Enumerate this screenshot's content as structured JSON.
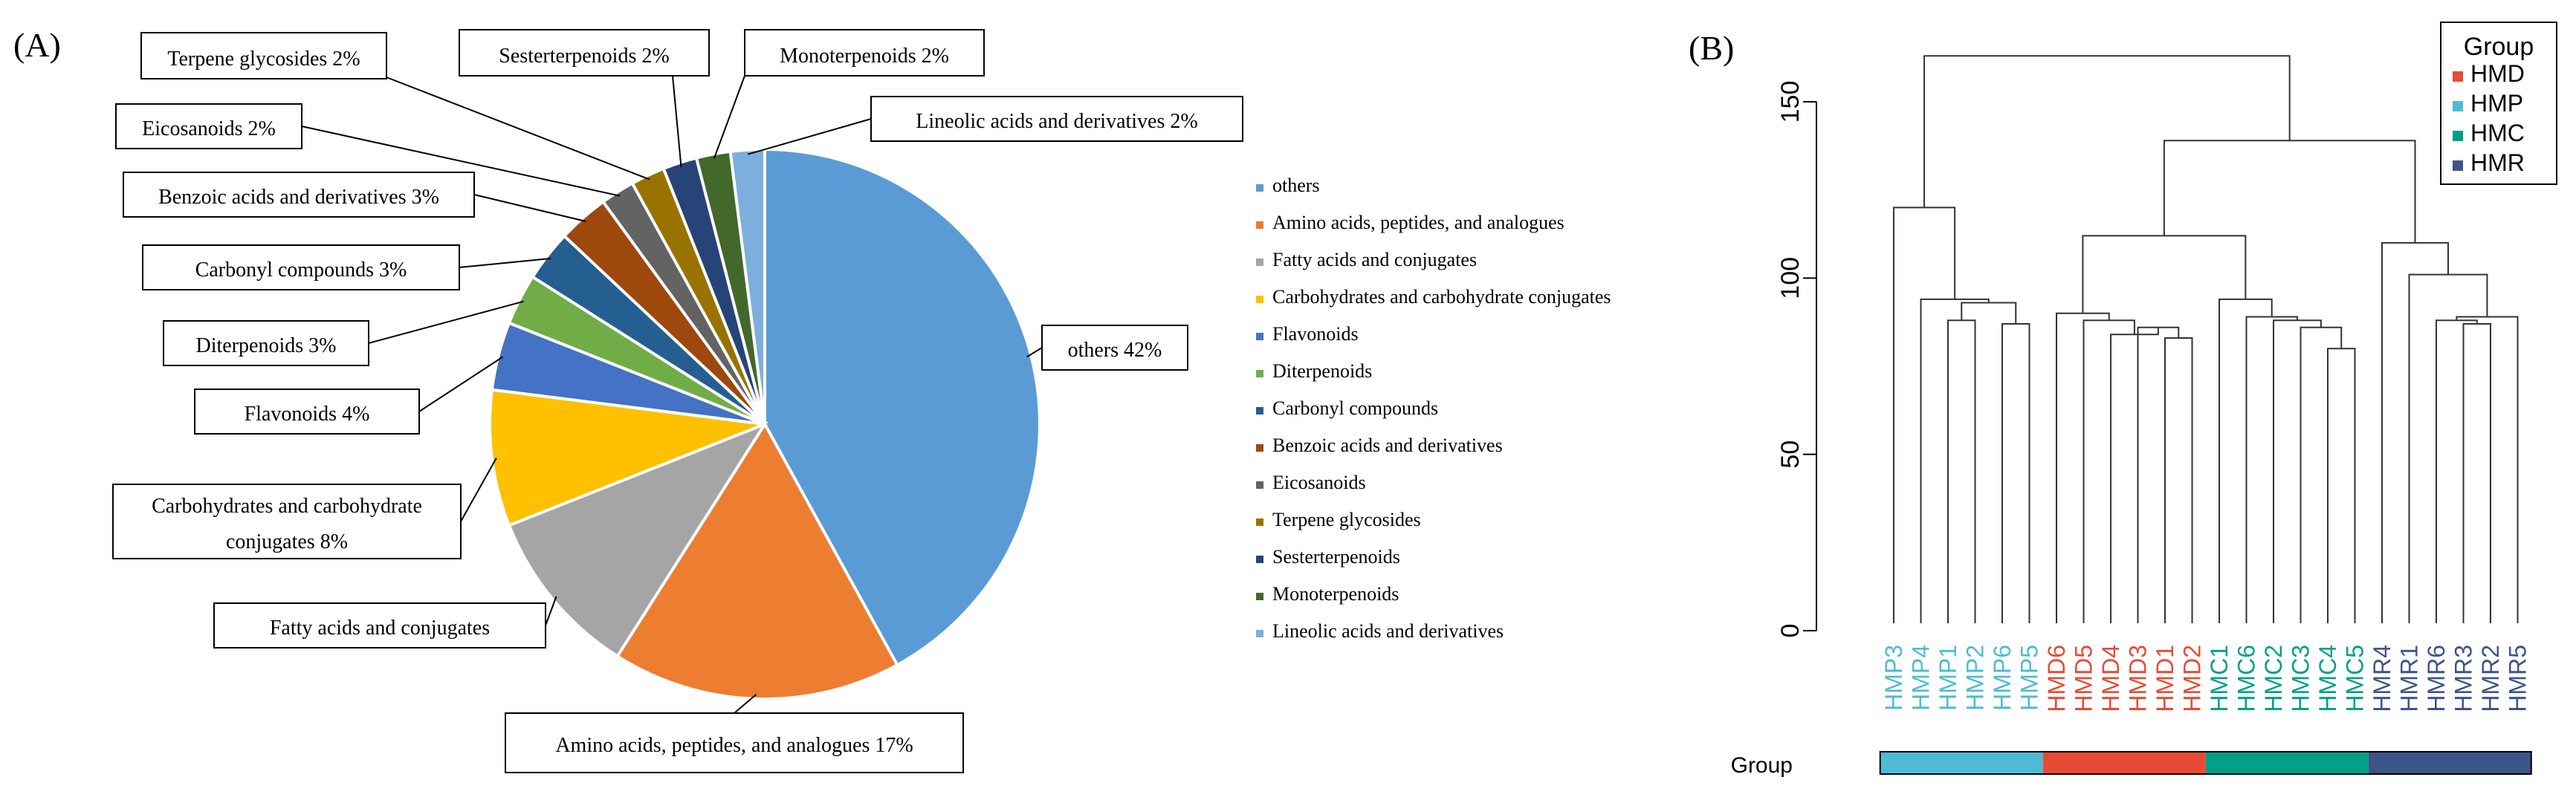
{
  "panel_labels": {
    "a": "(A)",
    "b": "(B)"
  },
  "chart_data": [
    {
      "type": "pie",
      "categories": [
        "others",
        "Amino acids, peptides, and analogues",
        "Fatty acids and conjugates",
        "Carbohydrates and carbohydrate conjugates",
        "Flavonoids",
        "Diterpenoids",
        "Carbonyl compounds",
        "Benzoic acids and derivatives",
        "Eicosanoids",
        "Terpene glycosides",
        "Sesterterpenoids",
        "Monoterpenoids",
        "Lineolic acids and derivatives"
      ],
      "values": [
        42,
        17,
        10,
        8,
        4,
        3,
        3,
        3,
        2,
        2,
        2,
        2,
        2
      ],
      "colors": [
        "#5B9BD5",
        "#ED7D31",
        "#A5A5A5",
        "#FFC000",
        "#4472C4",
        "#70AD47",
        "#255E91",
        "#9E480E",
        "#636363",
        "#997300",
        "#264478",
        "#43682B",
        "#7CAFDD"
      ],
      "data_labels": [
        "others 42%",
        "Amino acids, peptides, and analogues 17%",
        "Fatty acids and conjugates",
        "Carbohydrates and carbohydrate conjugates 8%",
        "Flavonoids 4%",
        "Diterpenoids 3%",
        "Carbonyl compounds 3%",
        "Benzoic acids and derivatives 3%",
        "Eicosanoids 2%",
        "Terpene glycosides 2%",
        "Sesterterpenoids 2%",
        "Monoterpenoids 2%",
        "Lineolic acids and derivatives 2%"
      ],
      "legend": "right"
    },
    {
      "type": "dendrogram",
      "leaves": [
        "HMP3",
        "HMP4",
        "HMP1",
        "HMP2",
        "HMP6",
        "HMP5",
        "HMD6",
        "HMD5",
        "HMD4",
        "HMD3",
        "HMD1",
        "HMD2",
        "HMC1",
        "HMC6",
        "HMC2",
        "HMC3",
        "HMC4",
        "HMC5",
        "HMR4",
        "HMR1",
        "HMR6",
        "HMR3",
        "HMR2",
        "HMR5"
      ],
      "leaf_groups": [
        "HMP",
        "HMP",
        "HMP",
        "HMP",
        "HMP",
        "HMP",
        "HMD",
        "HMD",
        "HMD",
        "HMD",
        "HMD",
        "HMD",
        "HMC",
        "HMC",
        "HMC",
        "HMC",
        "HMC",
        "HMC",
        "HMR",
        "HMR",
        "HMR",
        "HMR",
        "HMR",
        "HMR"
      ],
      "yticks": [
        "0",
        "50",
        "100",
        "150"
      ],
      "ylim": [
        0,
        165
      ],
      "merges": [
        {
          "a": [
            "leaf",
            4
          ],
          "b": [
            "leaf",
            5
          ],
          "h": 87
        },
        {
          "a": [
            "leaf",
            2
          ],
          "b": [
            "leaf",
            3
          ],
          "h": 88
        },
        {
          "a": [
            "node",
            1
          ],
          "b": [
            "node",
            0
          ],
          "h": 93
        },
        {
          "a": [
            "leaf",
            1
          ],
          "b": [
            "node",
            2
          ],
          "h": 94
        },
        {
          "a": [
            "leaf",
            0
          ],
          "b": [
            "node",
            3
          ],
          "h": 120
        },
        {
          "a": [
            "leaf",
            10
          ],
          "b": [
            "leaf",
            11
          ],
          "h": 83
        },
        {
          "a": [
            "leaf",
            9
          ],
          "b": [
            "node",
            5
          ],
          "h": 86
        },
        {
          "a": [
            "leaf",
            8
          ],
          "b": [
            "node",
            6
          ],
          "h": 84
        },
        {
          "a": [
            "leaf",
            7
          ],
          "b": [
            "node",
            7
          ],
          "h": 88
        },
        {
          "a": [
            "leaf",
            6
          ],
          "b": [
            "node",
            8
          ],
          "h": 90
        },
        {
          "a": [
            "leaf",
            16
          ],
          "b": [
            "leaf",
            17
          ],
          "h": 80
        },
        {
          "a": [
            "leaf",
            15
          ],
          "b": [
            "node",
            10
          ],
          "h": 86
        },
        {
          "a": [
            "leaf",
            14
          ],
          "b": [
            "node",
            11
          ],
          "h": 88
        },
        {
          "a": [
            "leaf",
            13
          ],
          "b": [
            "node",
            12
          ],
          "h": 89
        },
        {
          "a": [
            "leaf",
            12
          ],
          "b": [
            "node",
            13
          ],
          "h": 94
        },
        {
          "a": [
            "node",
            9
          ],
          "b": [
            "node",
            14
          ],
          "h": 112
        },
        {
          "a": [
            "leaf",
            21
          ],
          "b": [
            "leaf",
            22
          ],
          "h": 87
        },
        {
          "a": [
            "leaf",
            20
          ],
          "b": [
            "node",
            16
          ],
          "h": 88
        },
        {
          "a": [
            "node",
            17
          ],
          "b": [
            "leaf",
            23
          ],
          "h": 89
        },
        {
          "a": [
            "leaf",
            19
          ],
          "b": [
            "node",
            18
          ],
          "h": 101
        },
        {
          "a": [
            "leaf",
            18
          ],
          "b": [
            "node",
            19
          ],
          "h": 110
        },
        {
          "a": [
            "node",
            15
          ],
          "b": [
            "node",
            20
          ],
          "h": 139
        },
        {
          "a": [
            "node",
            4
          ],
          "b": [
            "node",
            21
          ],
          "h": 163
        }
      ],
      "legend": {
        "title": "Group",
        "items": [
          {
            "label": "HMD",
            "color": "#E64B35"
          },
          {
            "label": "HMP",
            "color": "#4DBBD5"
          },
          {
            "label": "HMC",
            "color": "#00A087"
          },
          {
            "label": "HMR",
            "color": "#3C5488"
          }
        ],
        "position": "top-right"
      },
      "group_bar_label": "Group"
    }
  ]
}
